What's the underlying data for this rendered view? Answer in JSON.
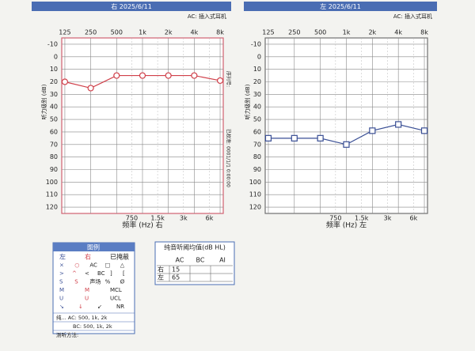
{
  "chart_data": [
    {
      "type": "line",
      "title": "右 2025/6/11",
      "subtitle": "AC: 插入式耳机",
      "ylabel": "听力级别 (dB)",
      "xlabel": "频率 (Hz) 右",
      "x": [
        125,
        250,
        500,
        1000,
        2000,
        4000,
        8000
      ],
      "series": [
        {
          "color": "#d0404a",
          "marker": "circle",
          "values": [
            20,
            25,
            15,
            15,
            15,
            15,
            19
          ]
        }
      ],
      "xscale": "log",
      "xlim": [
        115,
        8700
      ],
      "ylim": [
        -15,
        125
      ],
      "y_inverted": true,
      "xticks": [
        125,
        250,
        500,
        {
          "value": 1000,
          "label": "1k"
        },
        {
          "value": 2000,
          "label": "2k"
        },
        {
          "value": 4000,
          "label": "4k"
        },
        {
          "value": 8000,
          "label": "8k"
        }
      ],
      "xticks_bottom": [
        750,
        {
          "value": 1500,
          "label": "1.5k"
        },
        {
          "value": 3000,
          "label": "3k"
        },
        {
          "value": 6000,
          "label": "6k"
        }
      ],
      "yticks": [
        -10,
        0,
        10,
        20,
        30,
        40,
        50,
        60,
        70,
        80,
        90,
        100,
        110,
        120
      ],
      "side_texts": [
        "序列号:",
        "已校准: 0001/1/1 0:00:00"
      ],
      "border_color": "#d06070",
      "grid": true
    },
    {
      "type": "line",
      "title": "左 2025/6/11",
      "subtitle": "AC: 插入式耳机",
      "ylabel": "听力级别 (dB)",
      "xlabel": "频率 (Hz) 左",
      "x": [
        125,
        250,
        500,
        1000,
        2000,
        4000,
        8000
      ],
      "series": [
        {
          "color": "#3a4f95",
          "marker": "square",
          "values": [
            65,
            65,
            65,
            70,
            59,
            54,
            59
          ]
        }
      ],
      "xscale": "log",
      "xlim": [
        115,
        8700
      ],
      "ylim": [
        -15,
        125
      ],
      "y_inverted": true,
      "xticks": [
        125,
        250,
        500,
        {
          "value": 1000,
          "label": "1k"
        },
        {
          "value": 2000,
          "label": "2k"
        },
        {
          "value": 4000,
          "label": "4k"
        },
        {
          "value": 8000,
          "label": "8k"
        }
      ],
      "xticks_bottom": [
        750,
        {
          "value": 1500,
          "label": "1.5k"
        },
        {
          "value": 3000,
          "label": "3k"
        },
        {
          "value": 6000,
          "label": "6k"
        }
      ],
      "yticks": [
        -10,
        0,
        10,
        20,
        30,
        40,
        50,
        60,
        70,
        80,
        90,
        100,
        110,
        120
      ],
      "border_color": "#707070",
      "grid": true
    }
  ],
  "legend_panel": {
    "title": "图例",
    "rows": [
      [
        "左",
        "右",
        "已掩蔽"
      ],
      [
        "×",
        "○",
        "AC",
        "□",
        "△"
      ],
      [
        ">",
        "^",
        "<",
        "BC",
        "]",
        "["
      ],
      [
        "S",
        "S",
        "声场",
        "%",
        "Ø"
      ],
      [
        "M",
        "M",
        "MCL"
      ],
      [
        "U",
        "U",
        "UCL"
      ],
      [
        "↘",
        "↓",
        "↙",
        "NR"
      ]
    ],
    "notes": [
      "纯... AC: 500, 1k, 2k",
      "BC: 500, 1k, 2k",
      "测听方法:"
    ]
  },
  "average_table": {
    "title": "纯音听阈均值(dB HL)",
    "columns": [
      "AC",
      "BC",
      "AI"
    ],
    "rows": [
      [
        "右",
        15
      ],
      [
        "左",
        65
      ]
    ]
  }
}
